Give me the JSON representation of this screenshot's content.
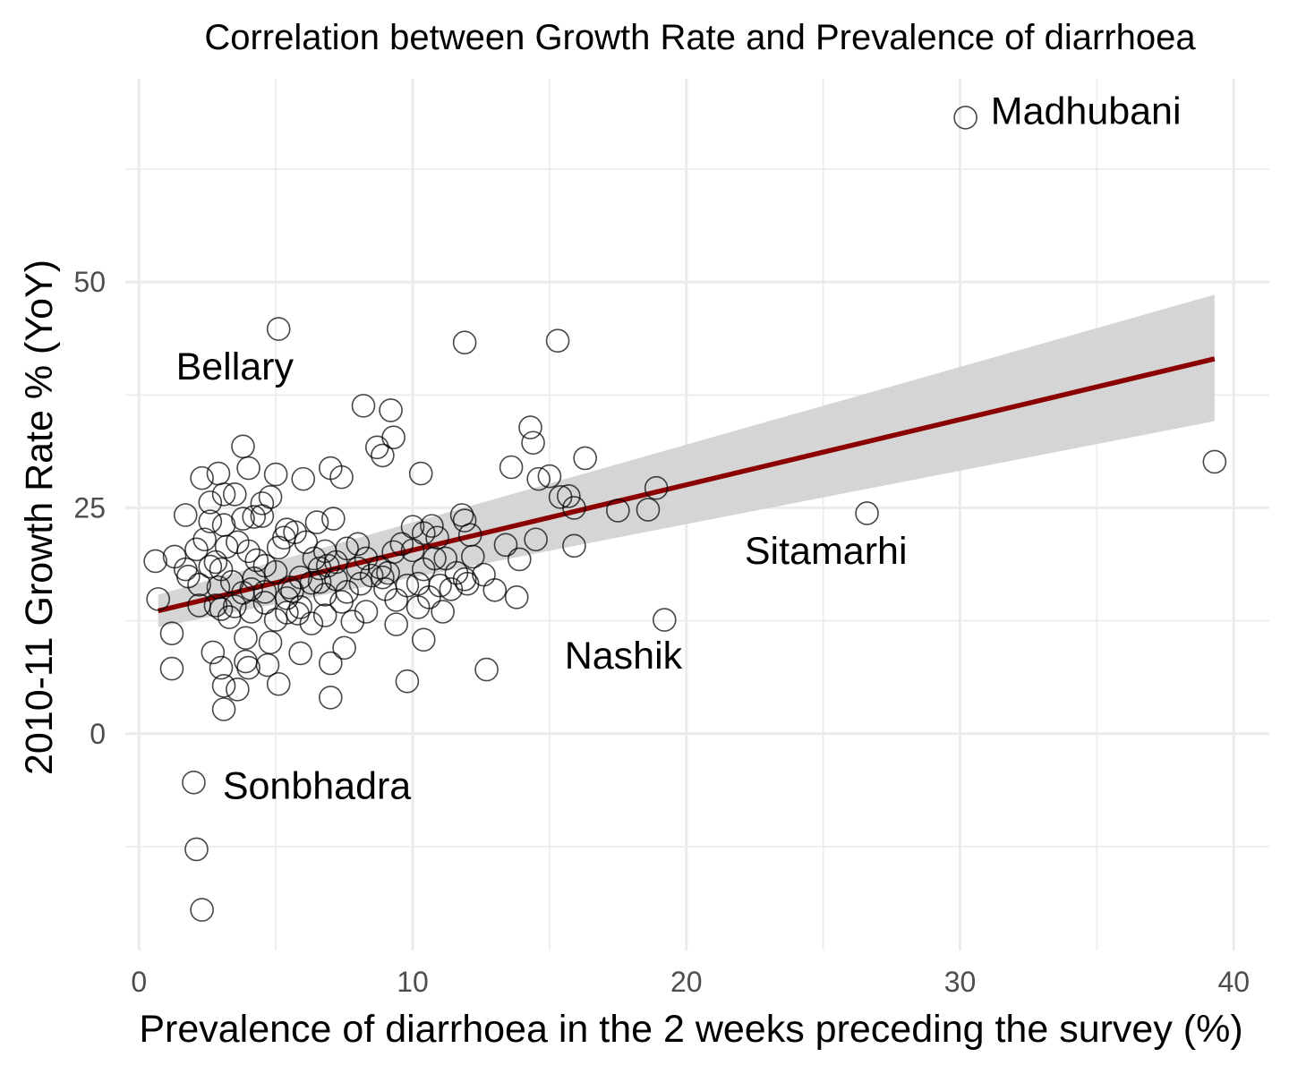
{
  "chart_data": {
    "type": "scatter",
    "title": "Correlation between Growth Rate and Prevalence of diarrhoea",
    "xlabel": "Prevalence of diarrhoea in the 2 weeks preceding the survey (%)",
    "ylabel": "2010-11 Growth Rate % (YoY)",
    "xlim": [
      -0.5,
      41.3
    ],
    "ylim": [
      -24,
      72.5
    ],
    "x_ticks": [
      0,
      10,
      20,
      30,
      40
    ],
    "x_tick_labels": [
      "0",
      "10",
      "20",
      "30",
      "40"
    ],
    "y_ticks": [
      0,
      25,
      50
    ],
    "y_tick_labels": [
      "0",
      "25",
      "50"
    ],
    "grid": true,
    "colors": {
      "points": "#000000",
      "fit_line": "#8b0000",
      "ribbon": "#d3d3d3",
      "grid": "#ebebeb"
    },
    "points": [
      [
        30.2,
        68.2
      ],
      [
        39.3,
        30.1
      ],
      [
        26.6,
        24.4
      ],
      [
        19.2,
        12.6
      ],
      [
        2.0,
        -5.4
      ],
      [
        2.1,
        -12.8
      ],
      [
        2.3,
        -19.5
      ],
      [
        5.1,
        44.8
      ],
      [
        11.9,
        43.3
      ],
      [
        15.3,
        43.5
      ],
      [
        8.2,
        36.3
      ],
      [
        9.2,
        35.8
      ],
      [
        9.3,
        32.8
      ],
      [
        14.3,
        33.9
      ],
      [
        14.4,
        32.2
      ],
      [
        16.3,
        30.5
      ],
      [
        3.8,
        31.8
      ],
      [
        8.7,
        31.7
      ],
      [
        8.9,
        30.8
      ],
      [
        4.0,
        29.4
      ],
      [
        5.0,
        28.7
      ],
      [
        7.0,
        29.4
      ],
      [
        7.4,
        28.4
      ],
      [
        10.3,
        28.8
      ],
      [
        13.6,
        29.5
      ],
      [
        15.0,
        28.5
      ],
      [
        14.6,
        28.2
      ],
      [
        2.3,
        28.3
      ],
      [
        2.9,
        28.8
      ],
      [
        3.1,
        26.5
      ],
      [
        3.5,
        26.5
      ],
      [
        4.5,
        25.5
      ],
      [
        4.8,
        26.2
      ],
      [
        6.0,
        28.2
      ],
      [
        2.6,
        25.6
      ],
      [
        15.4,
        26.2
      ],
      [
        15.7,
        26.3
      ],
      [
        15.9,
        25.0
      ],
      [
        17.5,
        24.7
      ],
      [
        18.6,
        24.8
      ],
      [
        18.9,
        27.2
      ],
      [
        1.7,
        24.2
      ],
      [
        2.6,
        23.5
      ],
      [
        3.1,
        23.1
      ],
      [
        3.8,
        23.8
      ],
      [
        4.2,
        24.0
      ],
      [
        4.5,
        24.1
      ],
      [
        5.4,
        22.6
      ],
      [
        6.5,
        23.4
      ],
      [
        7.1,
        23.8
      ],
      [
        10.0,
        22.9
      ],
      [
        10.4,
        22.2
      ],
      [
        10.7,
        23.0
      ],
      [
        11.8,
        24.2
      ],
      [
        11.9,
        23.6
      ],
      [
        12.1,
        22.0
      ],
      [
        14.5,
        21.5
      ],
      [
        15.9,
        20.8
      ],
      [
        1.3,
        19.6
      ],
      [
        1.7,
        18.2
      ],
      [
        2.1,
        20.4
      ],
      [
        2.4,
        21.5
      ],
      [
        2.8,
        19.0
      ],
      [
        3.2,
        20.7
      ],
      [
        3.6,
        21.2
      ],
      [
        4.0,
        20.2
      ],
      [
        4.6,
        18.6
      ],
      [
        5.1,
        20.6
      ],
      [
        5.3,
        21.7
      ],
      [
        5.7,
        22.3
      ],
      [
        6.1,
        21.2
      ],
      [
        6.4,
        19.4
      ],
      [
        6.8,
        20.2
      ],
      [
        7.2,
        19.0
      ],
      [
        7.6,
        20.5
      ],
      [
        8.0,
        21.0
      ],
      [
        8.3,
        19.4
      ],
      [
        8.8,
        18.4
      ],
      [
        9.3,
        20.1
      ],
      [
        9.6,
        21.0
      ],
      [
        10.0,
        20.3
      ],
      [
        10.4,
        18.2
      ],
      [
        10.8,
        19.4
      ],
      [
        11.2,
        19.4
      ],
      [
        11.6,
        17.8
      ],
      [
        12.0,
        16.6
      ],
      [
        12.2,
        19.6
      ],
      [
        12.6,
        17.6
      ],
      [
        13.4,
        20.9
      ],
      [
        13.9,
        19.3
      ],
      [
        0.6,
        19.1
      ],
      [
        1.8,
        17.4
      ],
      [
        2.2,
        16.5
      ],
      [
        2.6,
        18.5
      ],
      [
        3.0,
        18.2
      ],
      [
        3.4,
        16.8
      ],
      [
        3.8,
        15.6
      ],
      [
        4.2,
        17.2
      ],
      [
        4.6,
        15.7
      ],
      [
        5.0,
        17.9
      ],
      [
        5.5,
        16.2
      ],
      [
        5.9,
        17.3
      ],
      [
        6.3,
        16.7
      ],
      [
        6.8,
        15.4
      ],
      [
        7.2,
        17.1
      ],
      [
        7.6,
        15.7
      ],
      [
        8.1,
        16.6
      ],
      [
        8.5,
        17.5
      ],
      [
        9.0,
        16.0
      ],
      [
        9.4,
        14.8
      ],
      [
        9.8,
        16.4
      ],
      [
        10.2,
        16.6
      ],
      [
        10.6,
        15.1
      ],
      [
        11.0,
        16.4
      ],
      [
        11.4,
        16.0
      ],
      [
        11.9,
        17.1
      ],
      [
        13.0,
        15.9
      ],
      [
        13.8,
        15.1
      ],
      [
        0.7,
        14.9
      ],
      [
        2.2,
        14.2
      ],
      [
        3.0,
        13.8
      ],
      [
        3.5,
        14.1
      ],
      [
        4.1,
        13.5
      ],
      [
        4.6,
        14.5
      ],
      [
        5.0,
        12.6
      ],
      [
        5.4,
        13.4
      ],
      [
        5.9,
        14.0
      ],
      [
        6.3,
        12.2
      ],
      [
        6.8,
        13.1
      ],
      [
        7.4,
        14.6
      ],
      [
        7.8,
        12.4
      ],
      [
        8.3,
        13.5
      ],
      [
        9.4,
        12.1
      ],
      [
        10.2,
        14.0
      ],
      [
        11.1,
        13.5
      ],
      [
        1.2,
        11.1
      ],
      [
        2.7,
        9.0
      ],
      [
        3.9,
        10.6
      ],
      [
        4.8,
        10.1
      ],
      [
        5.9,
        8.9
      ],
      [
        7.0,
        7.8
      ],
      [
        7.5,
        9.5
      ],
      [
        10.4,
        10.4
      ],
      [
        1.2,
        7.2
      ],
      [
        3.0,
        7.3
      ],
      [
        3.9,
        8.0
      ],
      [
        4.7,
        7.6
      ],
      [
        12.7,
        7.1
      ],
      [
        3.1,
        5.3
      ],
      [
        3.6,
        4.9
      ],
      [
        4.0,
        7.3
      ],
      [
        5.1,
        5.5
      ],
      [
        9.8,
        5.8
      ],
      [
        7.0,
        4.0
      ],
      [
        3.1,
        2.7
      ],
      [
        5.4,
        15.0
      ],
      [
        5.6,
        15.8
      ],
      [
        6.6,
        18.3
      ],
      [
        8.9,
        17.3
      ],
      [
        9.1,
        17.8
      ],
      [
        4.1,
        16.0
      ],
      [
        4.3,
        19.2
      ],
      [
        5.8,
        13.3
      ],
      [
        2.9,
        16.2
      ],
      [
        6.6,
        16.8
      ],
      [
        3.3,
        12.9
      ],
      [
        6.9,
        18.6
      ],
      [
        8.0,
        18.3
      ],
      [
        2.8,
        14.2
      ],
      [
        10.9,
        21.7
      ]
    ],
    "fit_line": {
      "x": [
        0.7,
        39.3
      ],
      "y": [
        13.6,
        41.5
      ]
    },
    "confidence_band": {
      "x": [
        0.7,
        39.3
      ],
      "lower": [
        11.8,
        34.6
      ],
      "upper": [
        15.4,
        48.6
      ]
    },
    "annotations": [
      {
        "text": "Madhubani",
        "x": 34.6,
        "y": 68.9
      },
      {
        "text": "Bellary",
        "x": 3.5,
        "y": 40.6
      },
      {
        "text": "Sitamarhi",
        "x": 25.1,
        "y": 20.2
      },
      {
        "text": "Nashik",
        "x": 17.7,
        "y": 8.6
      },
      {
        "text": "Sonbhadra",
        "x": 6.5,
        "y": -5.8
      }
    ]
  }
}
